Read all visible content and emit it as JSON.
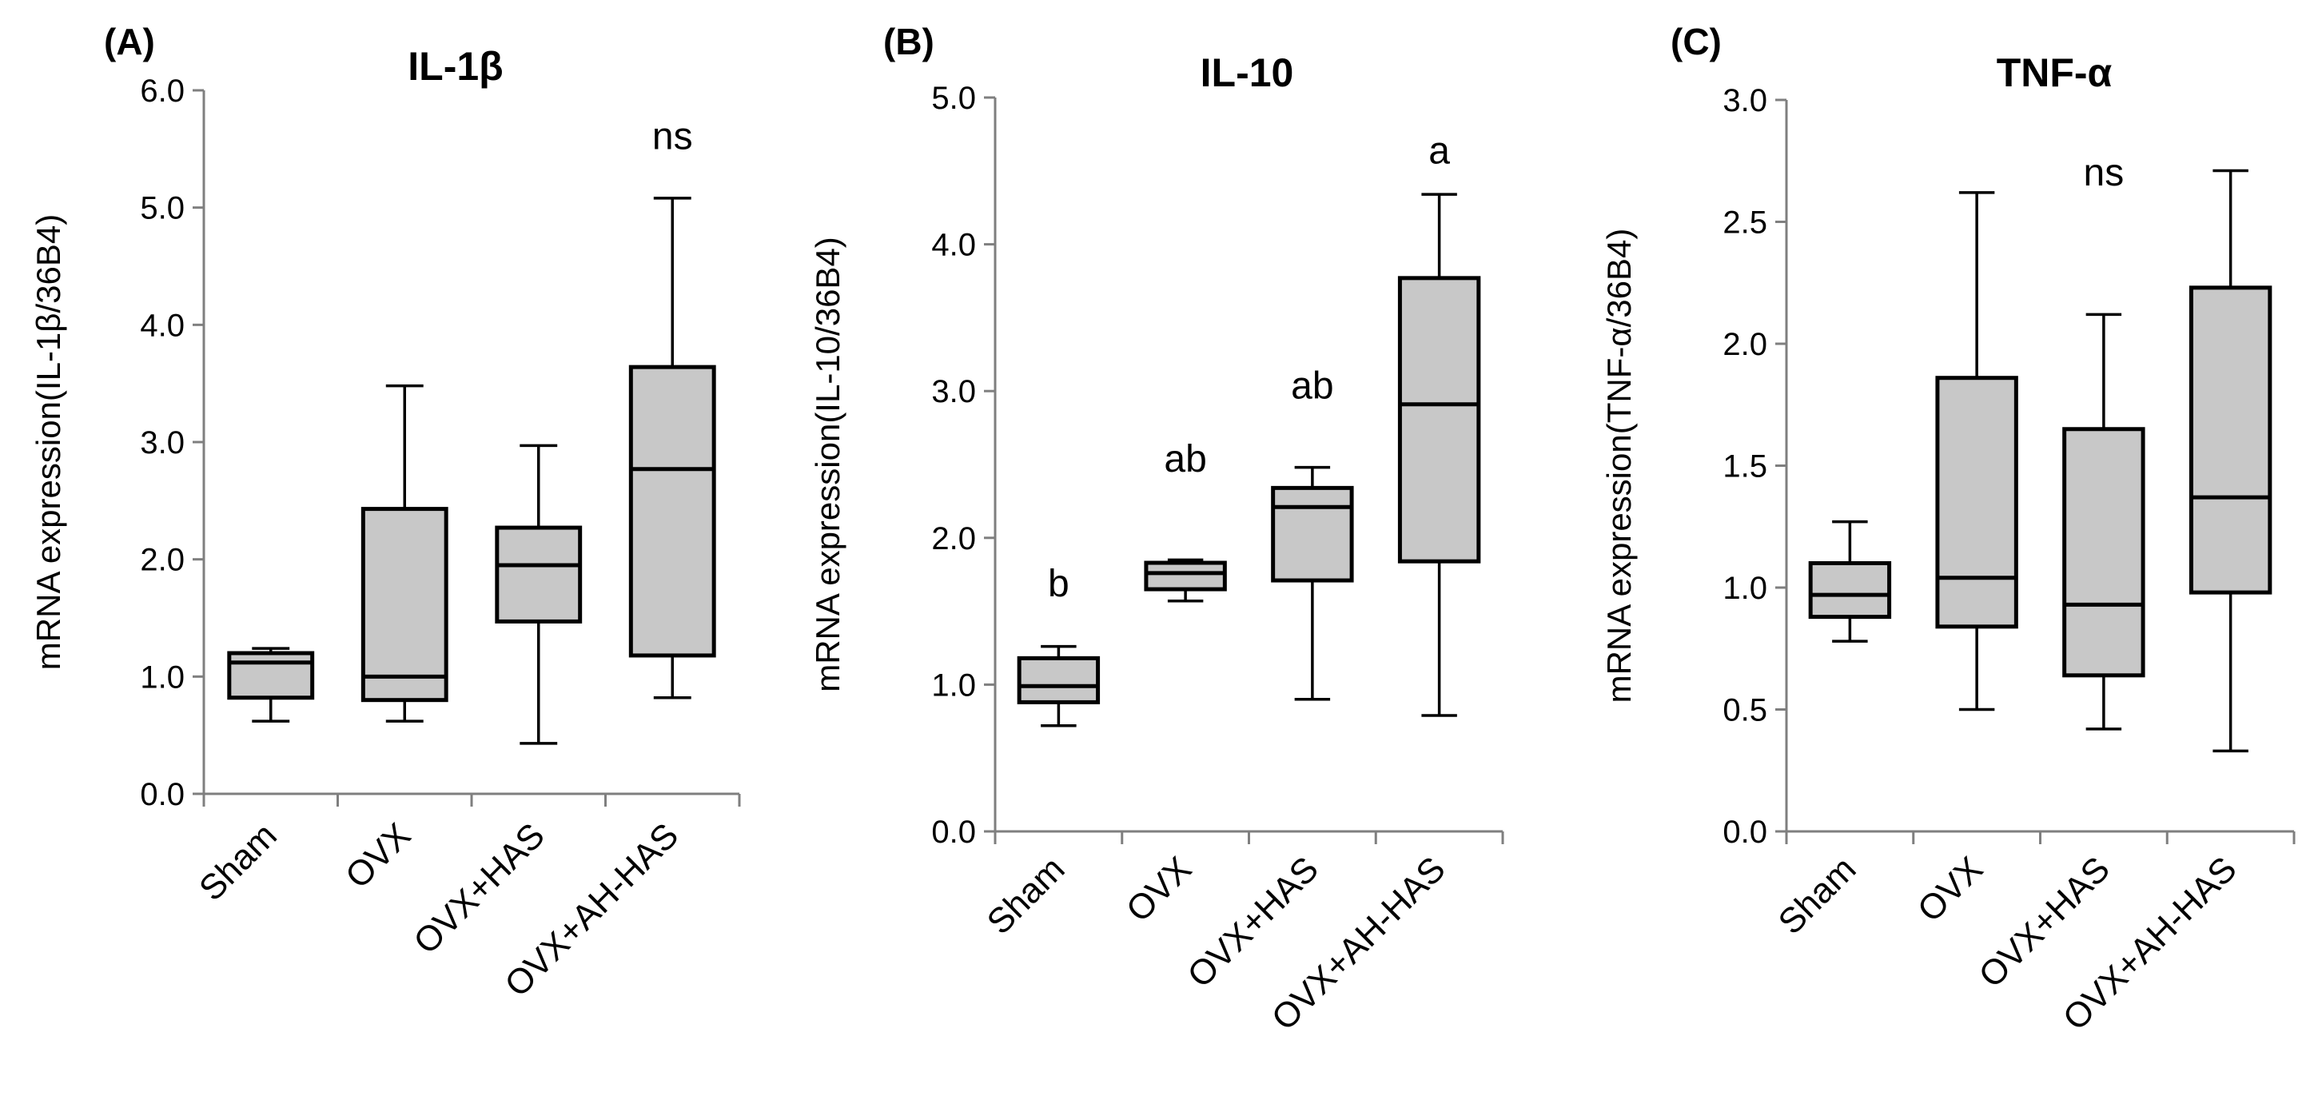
{
  "chart_data": [
    {
      "type": "box",
      "panel_label": "(A)",
      "title": "IL-1β",
      "ylabel": "mRNA expression(IL-1β/36B4)",
      "ylim": [
        0,
        6
      ],
      "yticks": [
        "0.0",
        "1.0",
        "2.0",
        "3.0",
        "4.0",
        "5.0",
        "6.0"
      ],
      "categories": [
        "Sham",
        "OVX",
        "OVX+HAS",
        "OVX+AH-HAS"
      ],
      "boxes": [
        {
          "min": 0.62,
          "q1": 0.82,
          "median": 1.12,
          "q3": 1.2,
          "max": 1.24
        },
        {
          "min": 0.62,
          "q1": 0.8,
          "median": 1.0,
          "q3": 2.43,
          "max": 3.48
        },
        {
          "min": 0.43,
          "q1": 1.47,
          "median": 1.95,
          "q3": 2.27,
          "max": 2.97
        },
        {
          "min": 0.82,
          "q1": 1.18,
          "median": 2.77,
          "q3": 3.64,
          "max": 5.08
        }
      ],
      "annotations": [
        {
          "text": "ns",
          "category": 3,
          "y": 5.5
        }
      ]
    },
    {
      "type": "box",
      "panel_label": "(B)",
      "title": "IL-10",
      "ylabel": "mRNA expression(IL-10/36B4)",
      "ylim": [
        0,
        5
      ],
      "yticks": [
        "0.0",
        "1.0",
        "2.0",
        "3.0",
        "4.0",
        "5.0"
      ],
      "categories": [
        "Sham",
        "OVX",
        "OVX+HAS",
        "OVX+AH-HAS"
      ],
      "boxes": [
        {
          "min": 0.72,
          "q1": 0.88,
          "median": 0.99,
          "q3": 1.18,
          "max": 1.26
        },
        {
          "min": 1.57,
          "q1": 1.65,
          "median": 1.76,
          "q3": 1.83,
          "max": 1.85
        },
        {
          "min": 0.9,
          "q1": 1.71,
          "median": 2.21,
          "q3": 2.34,
          "max": 2.48
        },
        {
          "min": 0.79,
          "q1": 1.84,
          "median": 2.91,
          "q3": 3.77,
          "max": 4.34
        }
      ],
      "annotations": [
        {
          "text": "b",
          "category": 0,
          "y": 1.6
        },
        {
          "text": "ab",
          "category": 1,
          "y": 2.45
        },
        {
          "text": "ab",
          "category": 2,
          "y": 2.95
        },
        {
          "text": "a",
          "category": 3,
          "y": 4.55
        }
      ]
    },
    {
      "type": "box",
      "panel_label": "(C)",
      "title": "TNF-α",
      "ylabel": "mRNA expression(TNF-α/36B4)",
      "ylim": [
        0,
        3
      ],
      "yticks": [
        "0.0",
        "0.5",
        "1.0",
        "1.5",
        "2.0",
        "2.5",
        "3.0"
      ],
      "categories": [
        "Sham",
        "OVX",
        "OVX+HAS",
        "OVX+AH-HAS"
      ],
      "boxes": [
        {
          "min": 0.78,
          "q1": 0.88,
          "median": 0.97,
          "q3": 1.1,
          "max": 1.27
        },
        {
          "min": 0.5,
          "q1": 0.84,
          "median": 1.04,
          "q3": 1.86,
          "max": 2.62
        },
        {
          "min": 0.42,
          "q1": 0.64,
          "median": 0.93,
          "q3": 1.65,
          "max": 2.12
        },
        {
          "min": 0.33,
          "q1": 0.98,
          "median": 1.37,
          "q3": 2.23,
          "max": 2.71
        }
      ],
      "annotations": [
        {
          "text": "ns",
          "category": 2,
          "y": 2.65
        }
      ]
    }
  ],
  "colors": {
    "box_fill": "#c8c8c8",
    "stroke": "#000000",
    "axis": "#7f7f7f"
  }
}
